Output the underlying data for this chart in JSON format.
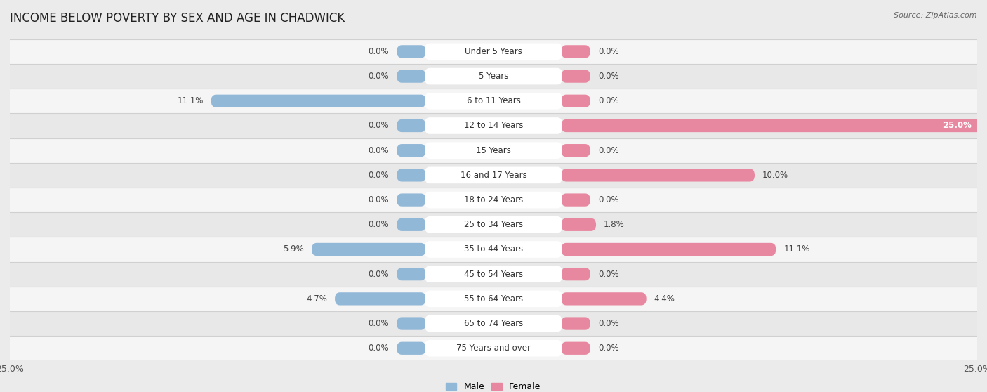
{
  "title": "INCOME BELOW POVERTY BY SEX AND AGE IN CHADWICK",
  "source": "Source: ZipAtlas.com",
  "categories": [
    "Under 5 Years",
    "5 Years",
    "6 to 11 Years",
    "12 to 14 Years",
    "15 Years",
    "16 and 17 Years",
    "18 to 24 Years",
    "25 to 34 Years",
    "35 to 44 Years",
    "45 to 54 Years",
    "55 to 64 Years",
    "65 to 74 Years",
    "75 Years and over"
  ],
  "male": [
    0.0,
    0.0,
    11.1,
    0.0,
    0.0,
    0.0,
    0.0,
    0.0,
    5.9,
    0.0,
    4.7,
    0.0,
    0.0
  ],
  "female": [
    0.0,
    0.0,
    0.0,
    25.0,
    0.0,
    10.0,
    0.0,
    1.8,
    11.1,
    0.0,
    4.4,
    0.0,
    0.0
  ],
  "male_color": "#92b8d8",
  "female_color": "#e888a0",
  "male_label": "Male",
  "female_label": "Female",
  "background_color": "#ebebeb",
  "row_bg_even": "#f5f5f5",
  "row_bg_odd": "#e8e8e8",
  "max_value": 25.0,
  "title_fontsize": 12,
  "label_fontsize": 8.5,
  "tick_fontsize": 9,
  "source_fontsize": 8,
  "value_fontsize": 8.5
}
